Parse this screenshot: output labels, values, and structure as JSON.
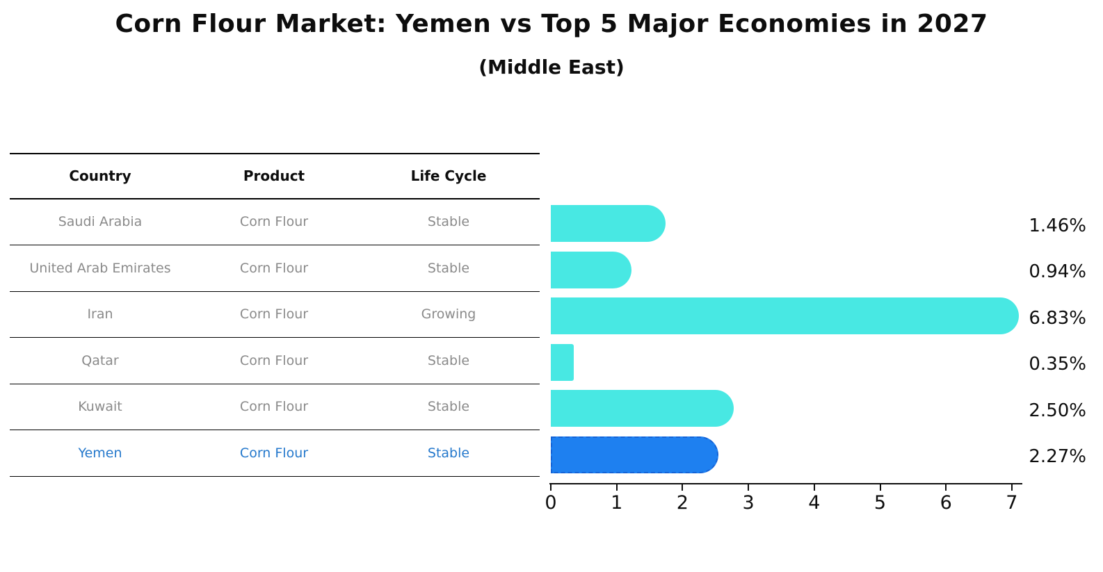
{
  "title": "Corn Flour Market: Yemen vs Top 5 Major Economies in 2027",
  "subtitle": "(Middle East)",
  "table": {
    "headers": [
      "Country",
      "Product",
      "Life Cycle"
    ],
    "rows": [
      {
        "country": "Saudi Arabia",
        "product": "Corn Flour",
        "life_cycle": "Stable",
        "highlight": false
      },
      {
        "country": "United Arab Emirates",
        "product": "Corn Flour",
        "life_cycle": "Stable",
        "highlight": false
      },
      {
        "country": "Iran",
        "product": "Corn Flour",
        "life_cycle": "Growing",
        "highlight": false
      },
      {
        "country": "Qatar",
        "product": "Corn Flour",
        "life_cycle": "Stable",
        "highlight": false
      },
      {
        "country": "Kuwait",
        "product": "Corn Flour",
        "life_cycle": "Stable",
        "highlight": false
      },
      {
        "country": "Yemen",
        "product": "Corn Flour",
        "life_cycle": "Stable",
        "highlight": true
      }
    ]
  },
  "chart_data": {
    "type": "bar",
    "orientation": "horizontal",
    "title": "Corn Flour Market: Yemen vs Top 5 Major Economies in 2027",
    "subtitle": "(Middle East)",
    "categories": [
      "Saudi Arabia",
      "United Arab Emirates",
      "Iran",
      "Qatar",
      "Kuwait",
      "Yemen"
    ],
    "values": [
      1.46,
      0.94,
      6.83,
      0.35,
      2.5,
      2.27
    ],
    "value_labels": [
      "1.46%",
      "0.94%",
      "6.83%",
      "0.35%",
      "2.50%",
      "2.27%"
    ],
    "xlabel": "",
    "ylabel": "",
    "xlim": [
      0,
      7.15
    ],
    "x_ticks": [
      0,
      1,
      2,
      3,
      4,
      5,
      6,
      7
    ],
    "grid": false,
    "legend": "none",
    "highlight_index": 5
  },
  "colors": {
    "bar": "#48e8e3",
    "highlight_bar": "#1e80f0",
    "highlight_border": "#1563d6",
    "highlight_text": "#2478cc",
    "row_text": "#8a8a8a",
    "text": "#0d0d0d"
  }
}
